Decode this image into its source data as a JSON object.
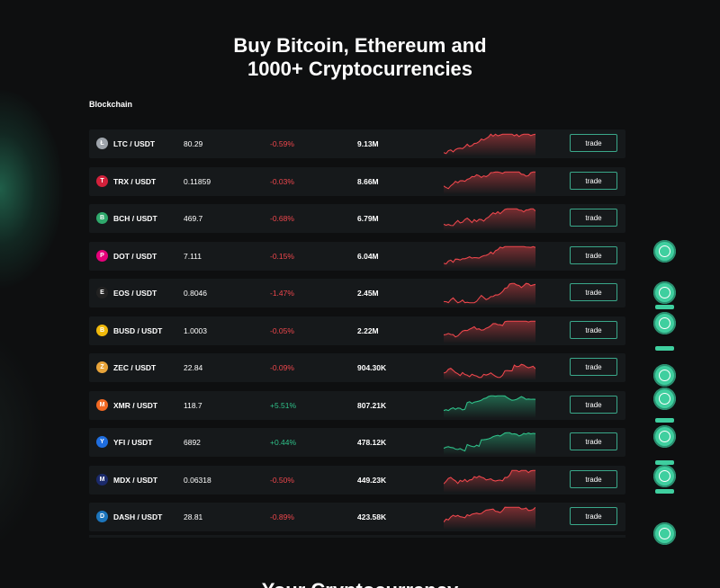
{
  "hero": {
    "title_line1": "Buy Bitcoin, Ethereum and",
    "title_line2": "1000+ Cryptocurrencies"
  },
  "section_label": "Blockchain",
  "next_heading": "Your Cryptocurrency",
  "trade_label": "trade",
  "colors": {
    "negative": "#f0474d",
    "positive": "#2fc28a",
    "accent": "#3fcf9f"
  },
  "rows": [
    {
      "pair": "LTC / USDT",
      "price": "80.29",
      "change": "-0.59%",
      "volume": "9.13M",
      "trend": "down",
      "icon": "litecoin-icon",
      "icon_glyph": "Ł",
      "icon_color": "#9ea4ab"
    },
    {
      "pair": "TRX / USDT",
      "price": "0.11859",
      "change": "-0.03%",
      "volume": "8.66M",
      "trend": "down",
      "icon": "tron-icon",
      "icon_glyph": "T",
      "icon_color": "#d3213b"
    },
    {
      "pair": "BCH / USDT",
      "price": "469.7",
      "change": "-0.68%",
      "volume": "6.79M",
      "trend": "down",
      "icon": "bitcoin-cash-icon",
      "icon_glyph": "B",
      "icon_color": "#2fa96c"
    },
    {
      "pair": "DOT / USDT",
      "price": "7.111",
      "change": "-0.15%",
      "volume": "6.04M",
      "trend": "down",
      "icon": "polkadot-icon",
      "icon_glyph": "P",
      "icon_color": "#e6007a"
    },
    {
      "pair": "EOS / USDT",
      "price": "0.8046",
      "change": "-1.47%",
      "volume": "2.45M",
      "trend": "down",
      "icon": "eos-icon",
      "icon_glyph": "E",
      "icon_color": "#222222"
    },
    {
      "pair": "BUSD / USDT",
      "price": "1.0003",
      "change": "-0.05%",
      "volume": "2.22M",
      "trend": "down",
      "icon": "busd-icon",
      "icon_glyph": "B",
      "icon_color": "#f0b90b"
    },
    {
      "pair": "ZEC / USDT",
      "price": "22.84",
      "change": "-0.09%",
      "volume": "904.30K",
      "trend": "down",
      "icon": "zcash-icon",
      "icon_glyph": "Z",
      "icon_color": "#e8a43a"
    },
    {
      "pair": "XMR / USDT",
      "price": "118.7",
      "change": "+5.51%",
      "volume": "807.21K",
      "trend": "up",
      "icon": "monero-icon",
      "icon_glyph": "M",
      "icon_color": "#f26822"
    },
    {
      "pair": "YFI / USDT",
      "price": "6892",
      "change": "+0.44%",
      "volume": "478.12K",
      "trend": "up",
      "icon": "yearn-icon",
      "icon_glyph": "Y",
      "icon_color": "#1f6ee0"
    },
    {
      "pair": "MDX / USDT",
      "price": "0.06318",
      "change": "-0.50%",
      "volume": "449.23K",
      "trend": "down",
      "icon": "mdex-icon",
      "icon_glyph": "M",
      "icon_color": "#1b2a6b"
    },
    {
      "pair": "DASH / USDT",
      "price": "28.81",
      "change": "-0.89%",
      "volume": "423.58K",
      "trend": "down",
      "icon": "dash-icon",
      "icon_glyph": "D",
      "icon_color": "#1c75bc"
    }
  ]
}
